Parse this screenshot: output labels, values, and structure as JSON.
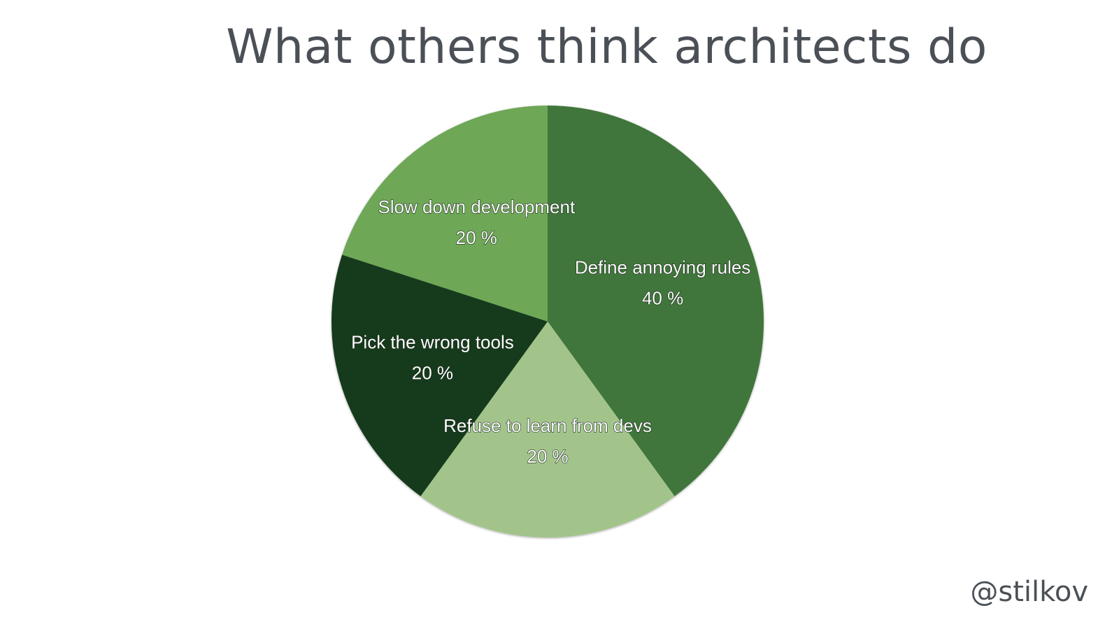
{
  "slide": {
    "title": "What others think architects do",
    "handle": "@stilkov"
  },
  "chart_data": {
    "type": "pie",
    "title": "What others think architects do",
    "start_angle_deg": 0,
    "direction": "clockwise",
    "slices": [
      {
        "label": "Define annoying rules",
        "value": 40,
        "value_label": "40 %",
        "color": "#40763a"
      },
      {
        "label": "Refuse to learn from devs",
        "value": 20,
        "value_label": "20 %",
        "color": "#a2c48b"
      },
      {
        "label": "Pick the wrong tools",
        "value": 20,
        "value_label": "20 %",
        "color": "#153a1b"
      },
      {
        "label": "Slow down development",
        "value": 20,
        "value_label": "20 %",
        "color": "#6ea756"
      }
    ]
  }
}
